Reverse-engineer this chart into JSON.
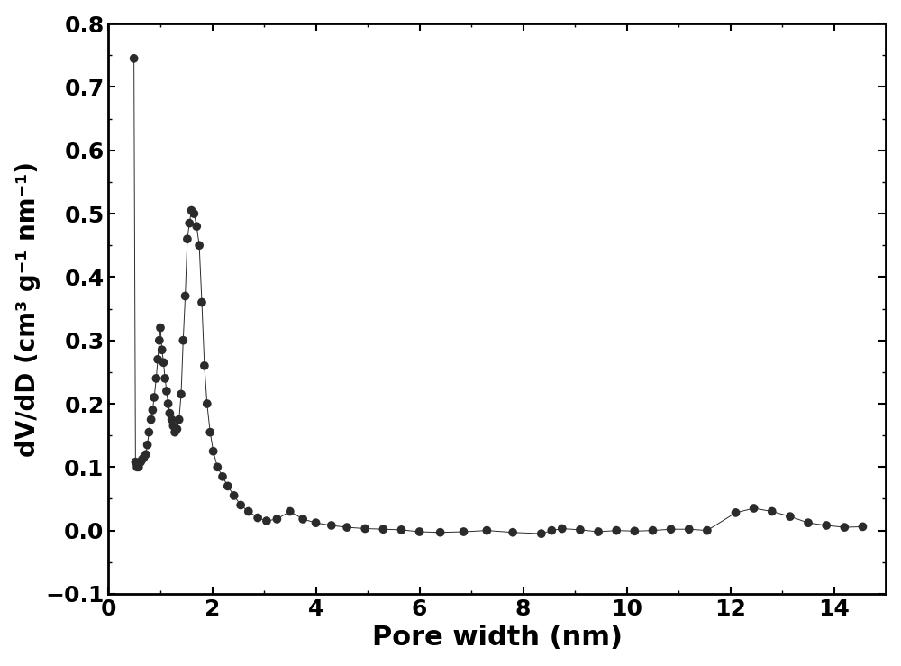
{
  "x": [
    0.49,
    0.52,
    0.55,
    0.58,
    0.62,
    0.65,
    0.68,
    0.72,
    0.75,
    0.78,
    0.82,
    0.85,
    0.88,
    0.92,
    0.95,
    0.98,
    1.0,
    1.03,
    1.06,
    1.09,
    1.12,
    1.15,
    1.18,
    1.22,
    1.25,
    1.28,
    1.32,
    1.36,
    1.4,
    1.44,
    1.48,
    1.52,
    1.56,
    1.6,
    1.65,
    1.7,
    1.75,
    1.8,
    1.85,
    1.9,
    1.96,
    2.02,
    2.1,
    2.2,
    2.3,
    2.42,
    2.55,
    2.7,
    2.88,
    3.05,
    3.25,
    3.5,
    3.75,
    4.0,
    4.3,
    4.6,
    4.95,
    5.3,
    5.65,
    6.0,
    6.4,
    6.85,
    7.3,
    7.8,
    8.35,
    8.55,
    8.75,
    9.1,
    9.45,
    9.8,
    10.15,
    10.5,
    10.85,
    11.2,
    11.55,
    12.1,
    12.45,
    12.8,
    13.15,
    13.5,
    13.85,
    14.2,
    14.55
  ],
  "y": [
    0.745,
    0.108,
    0.1,
    0.1,
    0.108,
    0.112,
    0.115,
    0.12,
    0.135,
    0.155,
    0.175,
    0.19,
    0.21,
    0.24,
    0.27,
    0.3,
    0.32,
    0.285,
    0.265,
    0.24,
    0.22,
    0.2,
    0.185,
    0.175,
    0.165,
    0.155,
    0.16,
    0.175,
    0.215,
    0.3,
    0.37,
    0.46,
    0.485,
    0.505,
    0.5,
    0.48,
    0.45,
    0.36,
    0.26,
    0.2,
    0.155,
    0.125,
    0.1,
    0.085,
    0.07,
    0.055,
    0.04,
    0.03,
    0.02,
    0.015,
    0.018,
    0.03,
    0.018,
    0.012,
    0.008,
    0.005,
    0.003,
    0.002,
    0.001,
    -0.002,
    -0.003,
    -0.002,
    0.0,
    -0.003,
    -0.005,
    0.0,
    0.003,
    0.001,
    -0.002,
    0.0,
    -0.001,
    0.0,
    0.002,
    0.002,
    0.0,
    0.028,
    0.035,
    0.03,
    0.022,
    0.012,
    0.008,
    0.005,
    0.006
  ],
  "marker_color": "#2b2b2b",
  "line_color": "#2b2b2b",
  "xlabel": "Pore width (nm)",
  "ylabel": "dV/dD (cm³ g⁻¹ nm⁻¹)",
  "xlim": [
    0.0,
    15.0
  ],
  "ylim": [
    -0.1,
    0.8
  ],
  "xticks": [
    0,
    2,
    4,
    6,
    8,
    10,
    12,
    14
  ],
  "yticks": [
    -0.1,
    0.0,
    0.1,
    0.2,
    0.3,
    0.4,
    0.5,
    0.6,
    0.7,
    0.8
  ],
  "xlabel_fontsize": 22,
  "ylabel_fontsize": 20,
  "tick_fontsize": 18,
  "marker_size": 7,
  "line_width": 0.7,
  "background_color": "#ffffff"
}
